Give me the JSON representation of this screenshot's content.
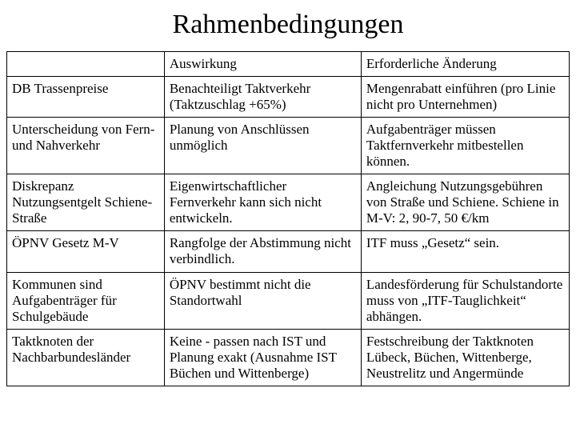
{
  "title": "Rahmenbedingungen",
  "table": {
    "columns": [
      "",
      "Auswirkung",
      "Erforderliche Änderung"
    ],
    "rows": [
      [
        "DB Trassenpreise",
        "Benachteiligt Taktverkehr (Taktzuschlag +65%)",
        "Mengenrabatt einführen (pro Linie nicht pro Unternehmen)"
      ],
      [
        "Unterscheidung von Fern- und Nahverkehr",
        "Planung von Anschlüssen unmöglich",
        "Aufgabenträger müssen Taktfernverkehr mitbestellen können."
      ],
      [
        "Diskrepanz Nutzungsentgelt Schiene-Straße",
        "Eigenwirtschaftlicher Fernverkehr kann sich nicht entwickeln.",
        "Angleichung Nutzungsgebühren von Straße und Schiene. Schiene in M-V: 2, 90-7, 50 €/km"
      ],
      [
        "ÖPNV Gesetz M-V",
        "Rangfolge der Abstimmung nicht verbindlich.",
        "ITF muss „Gesetz“ sein."
      ],
      [
        "Kommunen sind Aufgabenträger für Schulgebäude",
        "ÖPNV bestimmt nicht die Standortwahl",
        "Landesförderung für Schulstandorte muss von „ITF-Tauglichkeit“ abhängen."
      ],
      [
        "Taktknoten der Nachbarbundesländer",
        "Keine - passen nach IST und Planung exakt (Ausnahme IST Büchen und Wittenberge)",
        "Festschreibung der Taktknoten Lübeck, Büchen, Wittenberge, Neustrelitz und Angermünde"
      ]
    ],
    "column_widths_pct": [
      28,
      35,
      37
    ],
    "border_color": "#000000",
    "background_color": "#ffffff",
    "text_color": "#000000",
    "font_family": "Times New Roman",
    "title_fontsize_pt": 26,
    "cell_fontsize_pt": 13
  }
}
